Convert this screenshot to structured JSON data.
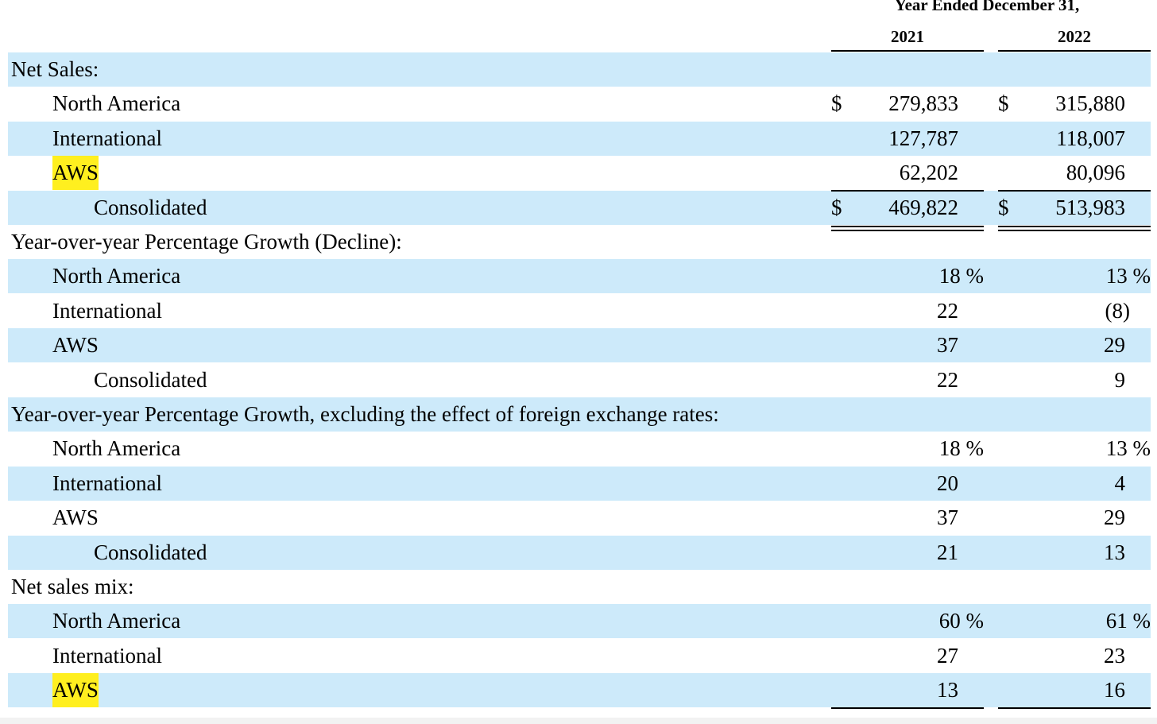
{
  "header": {
    "title": "Year Ended December 31,",
    "years": [
      "2021",
      "2022"
    ]
  },
  "currency_symbol": "$",
  "sections": [
    {
      "label": "Net Sales:",
      "rows": [
        {
          "label": "North America",
          "indent": 1,
          "v2021": "279,833",
          "v2022": "315,880",
          "currency": true
        },
        {
          "label": "International",
          "indent": 1,
          "v2021": "127,787",
          "v2022": "118,007"
        },
        {
          "label": "AWS",
          "indent": 1,
          "v2021": "62,202",
          "v2022": "80,096",
          "highlight": true
        },
        {
          "label": "Consolidated",
          "indent": 2,
          "v2021": "469,822",
          "v2022": "513,983",
          "currency": true
        }
      ]
    },
    {
      "label": "Year-over-year Percentage Growth (Decline):",
      "rows": [
        {
          "label": "North America",
          "indent": 1,
          "v2021": "18 %",
          "v2022": "13 %"
        },
        {
          "label": "International",
          "indent": 1,
          "v2021": "22",
          "v2022": "(8)"
        },
        {
          "label": "AWS",
          "indent": 1,
          "v2021": "37",
          "v2022": "29"
        },
        {
          "label": "Consolidated",
          "indent": 2,
          "v2021": "22",
          "v2022": "9"
        }
      ]
    },
    {
      "label": "Year-over-year Percentage Growth, excluding the effect of foreign exchange rates:",
      "rows": [
        {
          "label": "North America",
          "indent": 1,
          "v2021": "18 %",
          "v2022": "13 %"
        },
        {
          "label": "International",
          "indent": 1,
          "v2021": "20",
          "v2022": "4"
        },
        {
          "label": "AWS",
          "indent": 1,
          "v2021": "37",
          "v2022": "29"
        },
        {
          "label": "Consolidated",
          "indent": 2,
          "v2021": "21",
          "v2022": "13"
        }
      ]
    },
    {
      "label": "Net sales mix:",
      "rows": [
        {
          "label": "North America",
          "indent": 1,
          "v2021": "60 %",
          "v2022": "61 %"
        },
        {
          "label": "International",
          "indent": 1,
          "v2021": "27",
          "v2022": "23"
        },
        {
          "label": "AWS",
          "indent": 1,
          "v2021": "13",
          "v2022": "16",
          "highlight": true
        }
      ]
    }
  ],
  "colors": {
    "row_shade": "#cdeafa",
    "highlight": "#ffef1f",
    "text": "#000000"
  }
}
